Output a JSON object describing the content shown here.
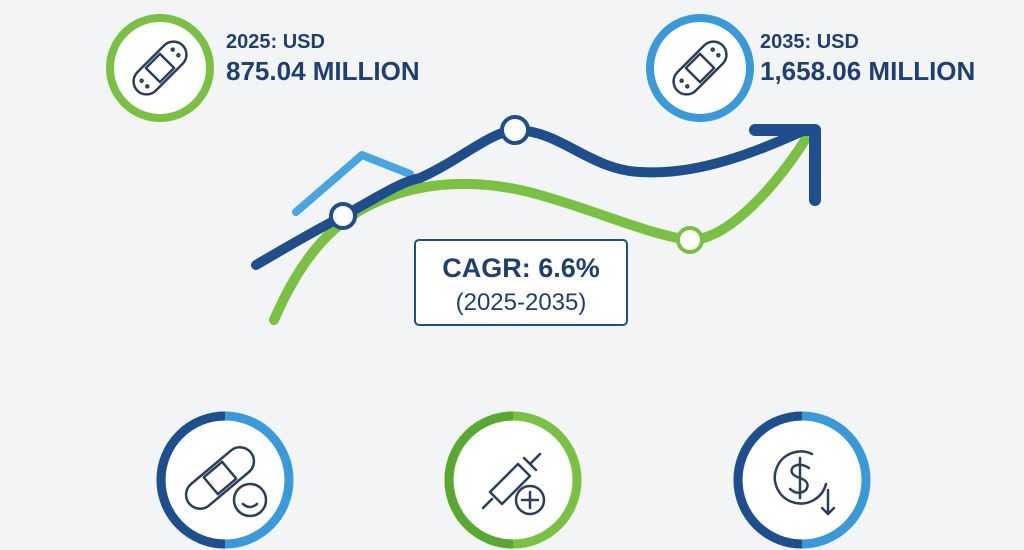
{
  "stats": [
    {
      "label": "2025: USD",
      "value": "875.04 MILLION"
    },
    {
      "label": "2035: USD",
      "value": "1,658.06 MILLION"
    }
  ],
  "cagr": {
    "rate": "CAGR: 6.6%",
    "period": "(2025-2035)"
  }
}
